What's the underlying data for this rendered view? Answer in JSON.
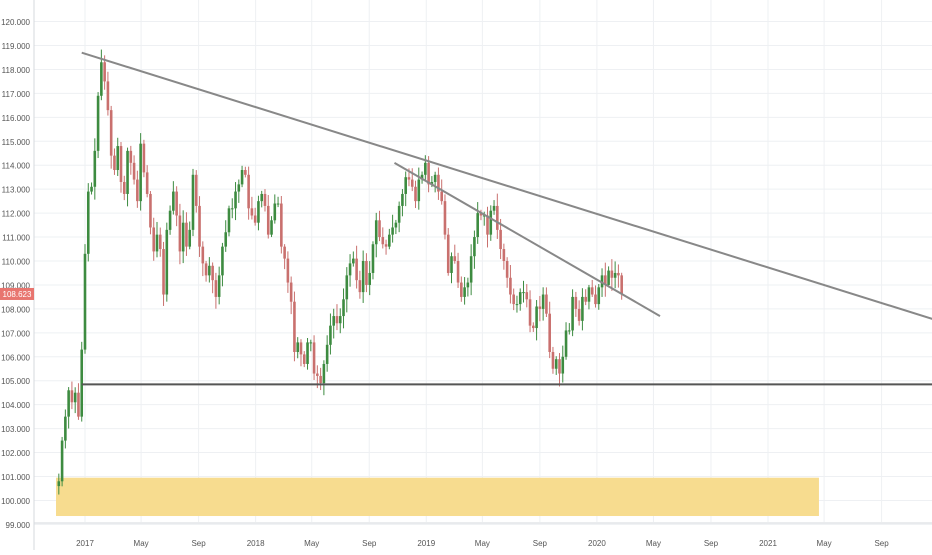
{
  "chart_data": {
    "type": "candlestick",
    "title": "",
    "xlabel": "",
    "ylabel": "",
    "ylim": [
      99.1,
      120.9
    ],
    "grid": true,
    "y_ticks": [
      "99.000",
      "100.000",
      "101.000",
      "102.000",
      "103.000",
      "104.000",
      "105.000",
      "106.000",
      "107.000",
      "108.000",
      "109.000",
      "110.000",
      "111.000",
      "112.000",
      "113.000",
      "114.000",
      "115.000",
      "116.000",
      "117.000",
      "118.000",
      "119.000",
      "120.000"
    ],
    "x_ticks": [
      {
        "label": "2017",
        "date": "2017-01"
      },
      {
        "label": "May",
        "date": "2017-05"
      },
      {
        "label": "Sep",
        "date": "2017-09"
      },
      {
        "label": "2018",
        "date": "2018-01"
      },
      {
        "label": "May",
        "date": "2018-05"
      },
      {
        "label": "Sep",
        "date": "2018-09"
      },
      {
        "label": "2019",
        "date": "2019-01"
      },
      {
        "label": "May",
        "date": "2019-05"
      },
      {
        "label": "Sep",
        "date": "2019-09"
      },
      {
        "label": "2020",
        "date": "2020-01"
      },
      {
        "label": "May",
        "date": "2020-05"
      },
      {
        "label": "Sep",
        "date": "2020-09"
      },
      {
        "label": "2021",
        "date": "2021-01"
      },
      {
        "label": "May",
        "date": "2021-05"
      },
      {
        "label": "Sep",
        "date": "2021-09"
      }
    ],
    "price_label": "108.623",
    "colors": {
      "up": "#3d8b40",
      "down": "#c9706e",
      "trendline": "#888888",
      "support": "#555555",
      "zone": "#f7dc8f",
      "price_tag": "#e8756f",
      "grid": "#eef0f3",
      "axis_text": "#555555"
    },
    "closes": [
      100.8,
      102.5,
      103.5,
      104.6,
      104.1,
      104.5,
      103.5,
      106.3,
      110.3,
      112.9,
      113.1,
      114.6,
      116.9,
      118.3,
      117.5,
      116.3,
      114.4,
      113.8,
      114.8,
      113.3,
      112.8,
      114.6,
      114.1,
      113.4,
      112.5,
      114.9,
      113.7,
      112.8,
      111.4,
      110.4,
      111.1,
      110.5,
      108.6,
      111.3,
      112.1,
      112.9,
      111.9,
      110.4,
      111.6,
      110.6,
      111.3,
      113.6,
      112.3,
      110.6,
      109.9,
      109.4,
      109.8,
      109.2,
      108.5,
      109.4,
      110.6,
      111.2,
      112.2,
      112.2,
      112.9,
      113.2,
      113.8,
      113.6,
      112.2,
      111.9,
      111.6,
      112.5,
      112.8,
      112.3,
      111.1,
      111.7,
      112.4,
      112.4,
      110.6,
      110.1,
      109.1,
      108.3,
      106.2,
      106.6,
      106.1,
      105.7,
      106.6,
      106.6,
      105.3,
      105.2,
      104.9,
      105.7,
      106.5,
      107.3,
      107.7,
      107.4,
      107.7,
      108.4,
      109.4,
      109.9,
      110.1,
      109.2,
      108.7,
      110.0,
      109.0,
      109.5,
      110.7,
      111.7,
      111.0,
      110.7,
      110.6,
      111.1,
      111.4,
      111.6,
      112.3,
      112.8,
      113.5,
      113.4,
      113.1,
      112.5,
      113.4,
      113.6,
      114.1,
      113.2,
      113.3,
      113.6,
      112.9,
      112.5,
      111.1,
      109.5,
      110.2,
      110.0,
      109.1,
      108.5,
      108.9,
      109.1,
      110.2,
      111.0,
      112.0,
      111.9,
      111.9,
      111.1,
      112.1,
      112.3,
      111.3,
      110.5,
      110.0,
      109.3,
      108.6,
      108.2,
      108.2,
      108.7,
      108.7,
      108.4,
      107.3,
      107.2,
      108.1,
      108.0,
      108.6,
      107.8,
      106.2,
      105.5,
      105.9,
      105.3,
      106.0,
      107.1,
      107.1,
      108.5,
      108.0,
      107.5,
      108.5,
      108.3,
      108.9,
      108.6,
      108.2,
      108.9,
      109.4,
      109.0,
      109.6,
      109.3,
      109.5,
      109.4,
      108.623
    ],
    "trendlines": [
      {
        "from": {
          "date": "2016-12-25",
          "price": 118.7
        },
        "to": {
          "date": "2022-01-01",
          "price": 107.5
        }
      },
      {
        "from": {
          "date": "2018-10-25",
          "price": 114.1
        },
        "to": {
          "date": "2020-05-15",
          "price": 107.7
        }
      },
      {
        "from": {
          "date": "2016-12-25",
          "price": 104.85
        },
        "to": {
          "date": "2022-01-01",
          "price": 104.85
        }
      }
    ],
    "zones": [
      {
        "from_date": "2016-10-31",
        "to_date": "2021-04-20",
        "price_low": 99.35,
        "price_high": 100.95
      }
    ]
  }
}
